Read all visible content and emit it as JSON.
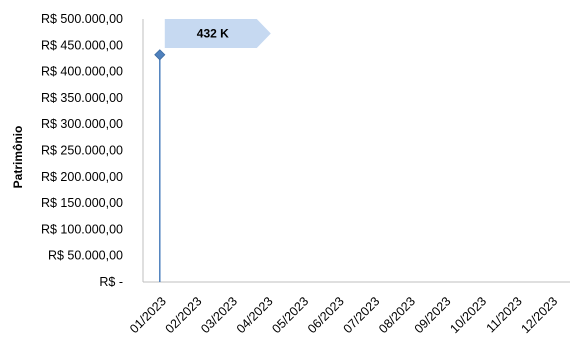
{
  "chart_data": {
    "type": "line",
    "title": "",
    "xlabel": "",
    "ylabel": "Patrimônio",
    "categories": [
      "01/2023",
      "02/2023",
      "03/2023",
      "04/2023",
      "05/2023",
      "06/2023",
      "07/2023",
      "08/2023",
      "09/2023",
      "10/2023",
      "11/2023",
      "12/2023"
    ],
    "series": [
      {
        "values": [
          432000,
          null,
          null,
          null,
          null,
          null,
          null,
          null,
          null,
          null,
          null,
          null
        ]
      }
    ],
    "ylim": [
      0,
      500000
    ],
    "y_ticks": [
      0,
      50000,
      100000,
      150000,
      200000,
      250000,
      300000,
      350000,
      400000,
      450000,
      500000
    ],
    "y_tick_labels": [
      "R$ -",
      "R$ 50.000,00",
      "R$ 100.000,00",
      "R$ 150.000,00",
      "R$ 200.000,00",
      "R$ 250.000,00",
      "R$ 300.000,00",
      "R$ 350.000,00",
      "R$ 400.000,00",
      "R$ 450.000,00",
      "R$ 500.000,00"
    ],
    "grid": false,
    "legend": "none",
    "annotation": {
      "text": "432 K",
      "category": "01/2023",
      "value": 432000
    },
    "colors": {
      "marker": "#4f81bd",
      "drop_line": "#4f81bd",
      "callout_fill": "#c6d9f1",
      "axis": "#bfbfbf"
    }
  }
}
